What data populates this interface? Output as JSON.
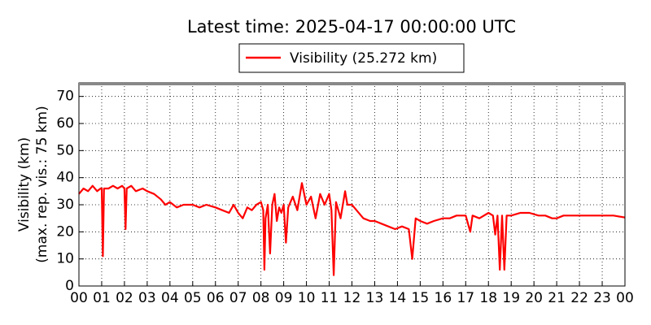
{
  "chart_data": {
    "type": "line",
    "title": "Latest time: 2025-04-17 00:00:00 UTC",
    "ylabel": [
      "Visibility (km)",
      "(max. rep. vis.: 75 km)"
    ],
    "x": [
      0,
      0.2,
      0.4,
      0.6,
      0.8,
      0.95,
      1.0,
      1.05,
      1.1,
      1.3,
      1.5,
      1.7,
      1.9,
      2.0,
      2.05,
      2.1,
      2.3,
      2.5,
      2.8,
      3.0,
      3.3,
      3.6,
      3.8,
      4.0,
      4.3,
      4.6,
      5.0,
      5.3,
      5.6,
      6.0,
      6.3,
      6.6,
      6.8,
      7.0,
      7.2,
      7.4,
      7.6,
      7.8,
      8.0,
      8.1,
      8.15,
      8.2,
      8.3,
      8.4,
      8.5,
      8.6,
      8.7,
      8.8,
      8.9,
      9.0,
      9.1,
      9.2,
      9.4,
      9.6,
      9.8,
      10.0,
      10.2,
      10.4,
      10.6,
      10.8,
      11.0,
      11.1,
      11.2,
      11.3,
      11.5,
      11.7,
      11.8,
      12.0,
      12.2,
      12.5,
      12.8,
      13.0,
      13.3,
      13.6,
      13.9,
      14.2,
      14.5,
      14.65,
      14.8,
      15.0,
      15.3,
      15.6,
      16.0,
      16.3,
      16.6,
      17.0,
      17.2,
      17.3,
      17.6,
      18.0,
      18.2,
      18.3,
      18.4,
      18.5,
      18.6,
      18.7,
      18.8,
      19.0,
      19.4,
      19.8,
      20.2,
      20.5,
      20.8,
      21.0,
      21.3,
      21.6,
      22.0,
      22.5,
      23.0,
      23.5,
      24.0
    ],
    "series": [
      {
        "name": "Visibility (25.272 km)",
        "color": "#ff0000",
        "values": [
          34,
          36,
          35,
          37,
          35,
          36,
          36,
          11,
          36,
          36,
          37,
          36,
          37,
          36,
          21,
          36,
          37,
          35,
          36,
          35,
          34,
          32,
          30,
          31,
          29,
          30,
          30,
          29,
          30,
          29,
          28,
          27,
          30,
          27,
          25,
          29,
          28,
          30,
          31,
          28,
          6,
          25,
          30,
          12,
          30,
          34,
          24,
          29,
          27,
          30,
          16,
          29,
          33,
          28,
          38,
          30,
          33,
          25,
          34,
          30,
          34,
          28,
          4,
          31,
          25,
          35,
          30,
          30,
          28,
          25,
          24,
          24,
          23,
          22,
          21,
          22,
          21,
          10,
          25,
          24,
          23,
          24,
          25,
          25,
          26,
          26,
          20,
          26,
          25,
          27,
          26,
          19,
          26,
          6,
          26,
          6,
          26,
          26,
          27,
          27,
          26,
          26,
          25,
          25,
          26,
          26,
          26,
          26,
          26,
          26,
          25.3
        ]
      }
    ],
    "xlim": [
      0,
      24
    ],
    "xticks": [
      {
        "value": 0,
        "label": "00"
      },
      {
        "value": 1,
        "label": "01"
      },
      {
        "value": 2,
        "label": "02"
      },
      {
        "value": 3,
        "label": "03"
      },
      {
        "value": 4,
        "label": "04"
      },
      {
        "value": 5,
        "label": "05"
      },
      {
        "value": 6,
        "label": "06"
      },
      {
        "value": 7,
        "label": "07"
      },
      {
        "value": 8,
        "label": "08"
      },
      {
        "value": 9,
        "label": "09"
      },
      {
        "value": 10,
        "label": "10"
      },
      {
        "value": 11,
        "label": "11"
      },
      {
        "value": 12,
        "label": "12"
      },
      {
        "value": 13,
        "label": "13"
      },
      {
        "value": 14,
        "label": "14"
      },
      {
        "value": 15,
        "label": "15"
      },
      {
        "value": 16,
        "label": "16"
      },
      {
        "value": 17,
        "label": "17"
      },
      {
        "value": 18,
        "label": "18"
      },
      {
        "value": 19,
        "label": "19"
      },
      {
        "value": 20,
        "label": "20"
      },
      {
        "value": 21,
        "label": "21"
      },
      {
        "value": 22,
        "label": "22"
      },
      {
        "value": 23,
        "label": "23"
      },
      {
        "value": 24,
        "label": "00"
      }
    ],
    "ylim": [
      0,
      75
    ],
    "yticks": [
      0,
      10,
      20,
      30,
      40,
      50,
      60,
      70
    ],
    "grid": true,
    "legend": "top"
  }
}
